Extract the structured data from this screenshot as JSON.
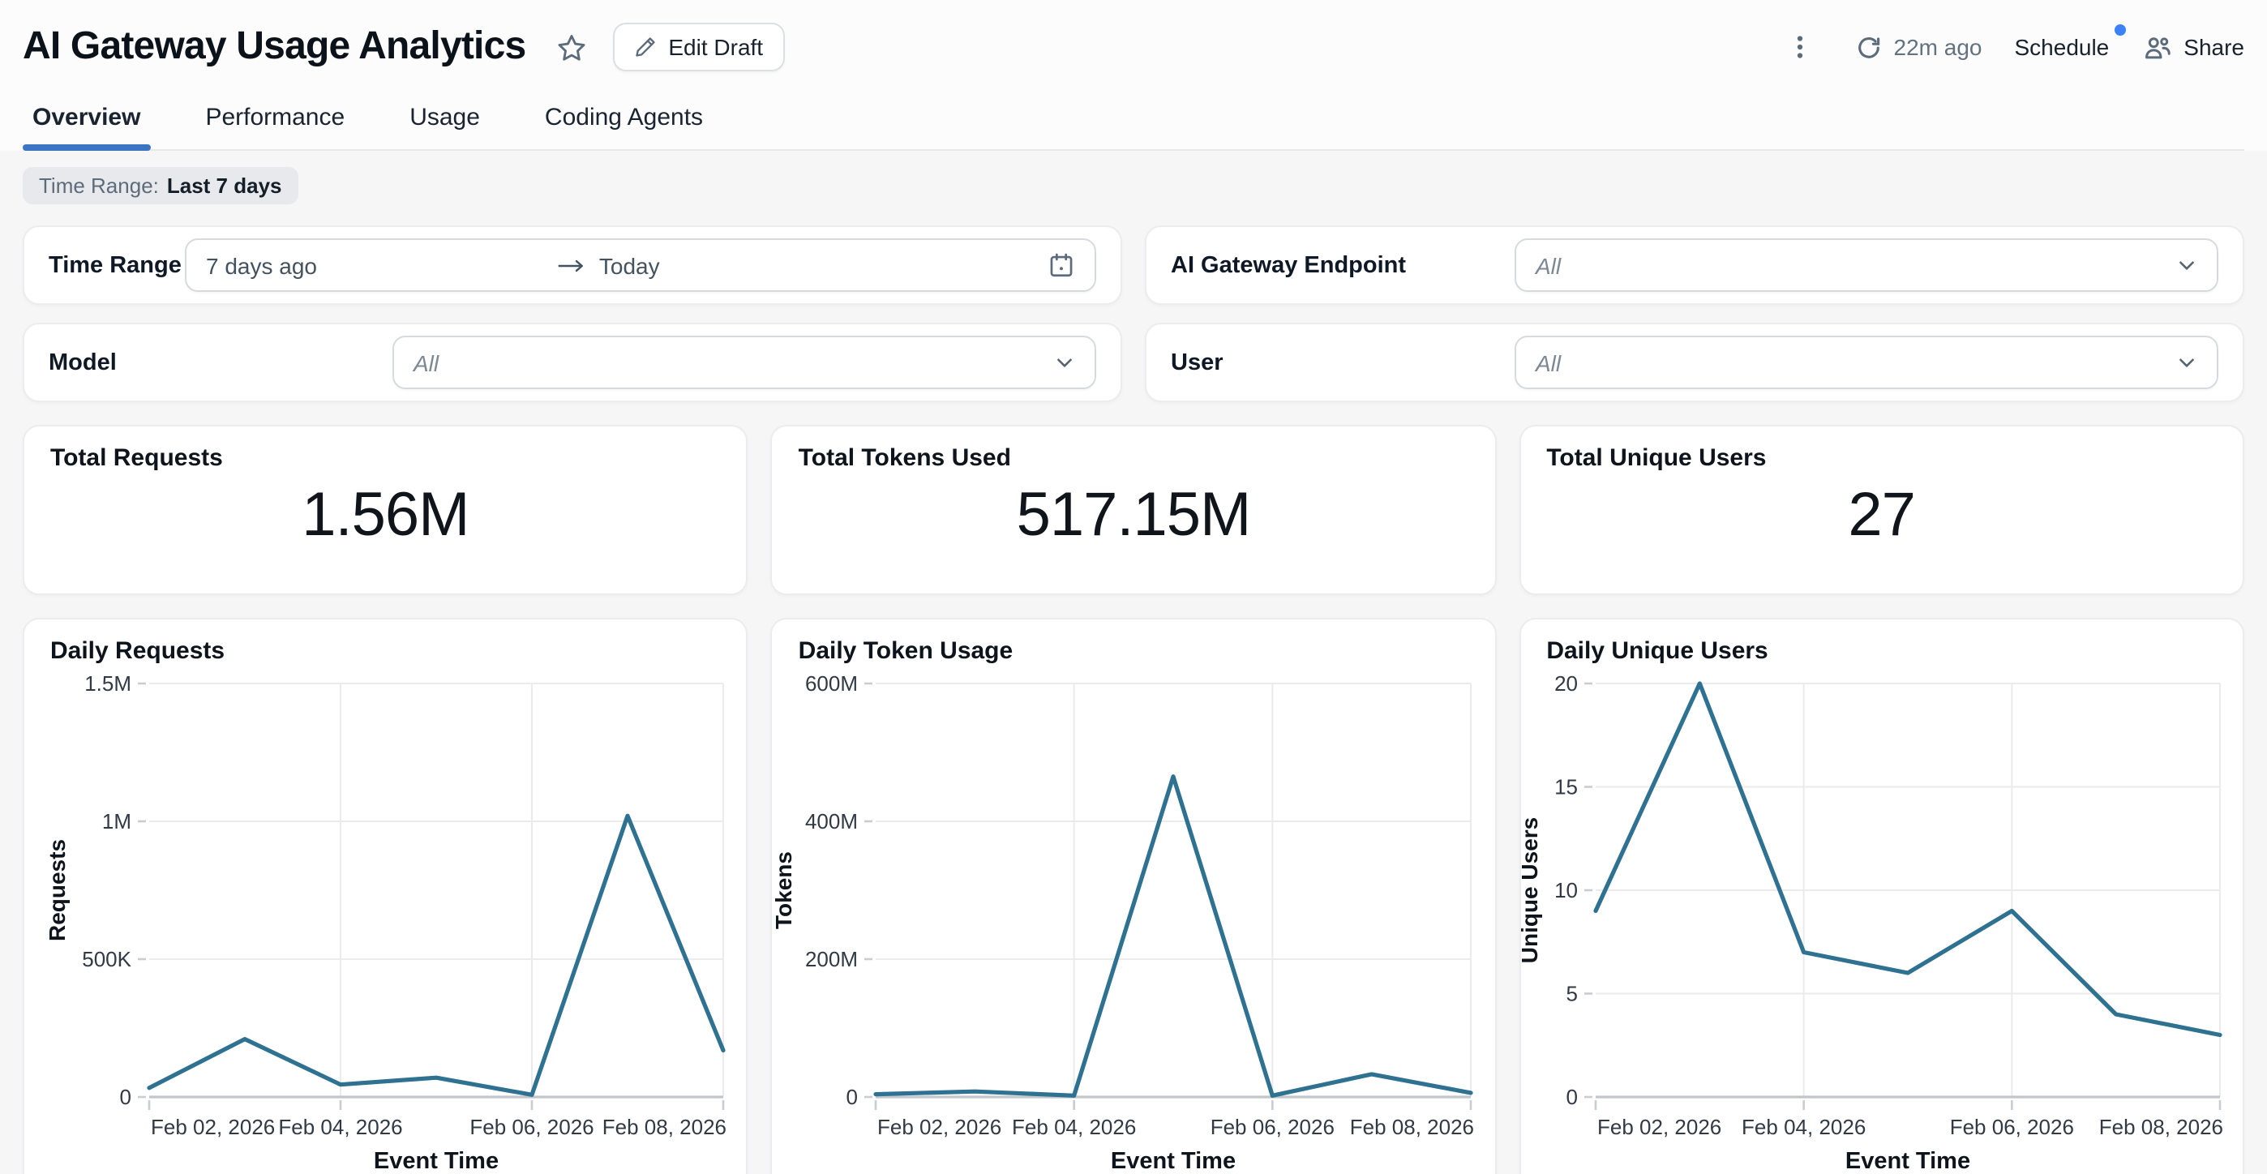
{
  "colors": {
    "accent": "#3b74c0",
    "notification_dot": "#3b82f6",
    "line": "#2e7191",
    "grid": "#ebebed",
    "axis": "#c2c6cb",
    "tick": "#c9ccd2",
    "tick_text": "#313a44",
    "axis_title": "#0d141b"
  },
  "header": {
    "title": "AI Gateway Usage Analytics",
    "edit_button_label": "Edit Draft",
    "last_refresh": "22m ago",
    "schedule_label": "Schedule",
    "share_label": "Share"
  },
  "tabs": [
    {
      "label": "Overview",
      "active": true
    },
    {
      "label": "Performance",
      "active": false
    },
    {
      "label": "Usage",
      "active": false
    },
    {
      "label": "Coding Agents",
      "active": false
    }
  ],
  "time_range_chip": {
    "label": "Time Range:",
    "value": "Last 7 days"
  },
  "filters": [
    {
      "label": "Time Range",
      "type": "daterange",
      "start": "7 days ago",
      "end": "Today"
    },
    {
      "label": "AI Gateway Endpoint",
      "type": "select",
      "value": "All"
    },
    {
      "label": "Model",
      "type": "select",
      "value": "All"
    },
    {
      "label": "User",
      "type": "select",
      "value": "All"
    }
  ],
  "stats": [
    {
      "title": "Total Requests",
      "value": "1.56M"
    },
    {
      "title": "Total Tokens Used",
      "value": "517.15M"
    },
    {
      "title": "Total Unique Users",
      "value": "27"
    }
  ],
  "chart_data": [
    {
      "type": "line",
      "title": "Daily Requests",
      "xlabel": "Event Time",
      "ylabel": "Requests",
      "x": [
        "Feb 02, 2026",
        "Feb 03, 2026",
        "Feb 04, 2026",
        "Feb 05, 2026",
        "Feb 06, 2026",
        "Feb 07, 2026",
        "Feb 08, 2026"
      ],
      "values": [
        33000,
        210000,
        45000,
        70000,
        8000,
        1020000,
        169000
      ],
      "ylim": [
        0,
        1500000
      ],
      "yticks": [
        {
          "v": 0,
          "label": "0"
        },
        {
          "v": 500000,
          "label": "500K"
        },
        {
          "v": 1000000,
          "label": "1M"
        },
        {
          "v": 1500000,
          "label": "1.5M"
        }
      ],
      "xticks": [
        {
          "i": 0,
          "label": "Feb 02, 2026"
        },
        {
          "i": 2,
          "label": "Feb 04, 2026"
        },
        {
          "i": 4,
          "label": "Feb 06, 2026"
        },
        {
          "i": 6,
          "label": "Feb 08, 2026"
        }
      ],
      "grid": true,
      "legend": "none",
      "layout": {
        "left": 77
      }
    },
    {
      "type": "line",
      "title": "Daily Token Usage",
      "xlabel": "Event Time",
      "ylabel": "Tokens",
      "x": [
        "Feb 02, 2026",
        "Feb 03, 2026",
        "Feb 04, 2026",
        "Feb 05, 2026",
        "Feb 06, 2026",
        "Feb 07, 2026",
        "Feb 08, 2026"
      ],
      "values": [
        4000000,
        8000000,
        2000000,
        465000000,
        2000000,
        33000000,
        6000000
      ],
      "ylim": [
        0,
        600000000
      ],
      "yticks": [
        {
          "v": 0,
          "label": "0"
        },
        {
          "v": 200000000,
          "label": "200M"
        },
        {
          "v": 400000000,
          "label": "400M"
        },
        {
          "v": 600000000,
          "label": "600M"
        }
      ],
      "xticks": [
        {
          "i": 0,
          "label": "Feb 02, 2026"
        },
        {
          "i": 2,
          "label": "Feb 04, 2026"
        },
        {
          "i": 4,
          "label": "Feb 06, 2026"
        },
        {
          "i": 6,
          "label": "Feb 08, 2026"
        }
      ],
      "grid": true,
      "legend": "none",
      "layout": {
        "left": 64
      }
    },
    {
      "type": "line",
      "title": "Daily Unique Users",
      "xlabel": "Event Time",
      "ylabel": "Unique Users",
      "x": [
        "Feb 02, 2026",
        "Feb 03, 2026",
        "Feb 04, 2026",
        "Feb 05, 2026",
        "Feb 06, 2026",
        "Feb 07, 2026",
        "Feb 08, 2026"
      ],
      "values": [
        9,
        20,
        7,
        6,
        9,
        4,
        3
      ],
      "ylim": [
        0,
        20
      ],
      "yticks": [
        {
          "v": 0,
          "label": "0"
        },
        {
          "v": 5,
          "label": "5"
        },
        {
          "v": 10,
          "label": "10"
        },
        {
          "v": 15,
          "label": "15"
        },
        {
          "v": 20,
          "label": "20"
        }
      ],
      "xticks": [
        {
          "i": 0,
          "label": "Feb 02, 2026"
        },
        {
          "i": 2,
          "label": "Feb 04, 2026"
        },
        {
          "i": 4,
          "label": "Feb 06, 2026"
        },
        {
          "i": 6,
          "label": "Feb 08, 2026"
        }
      ],
      "grid": true,
      "legend": "none",
      "layout": {
        "left": 46
      }
    }
  ]
}
